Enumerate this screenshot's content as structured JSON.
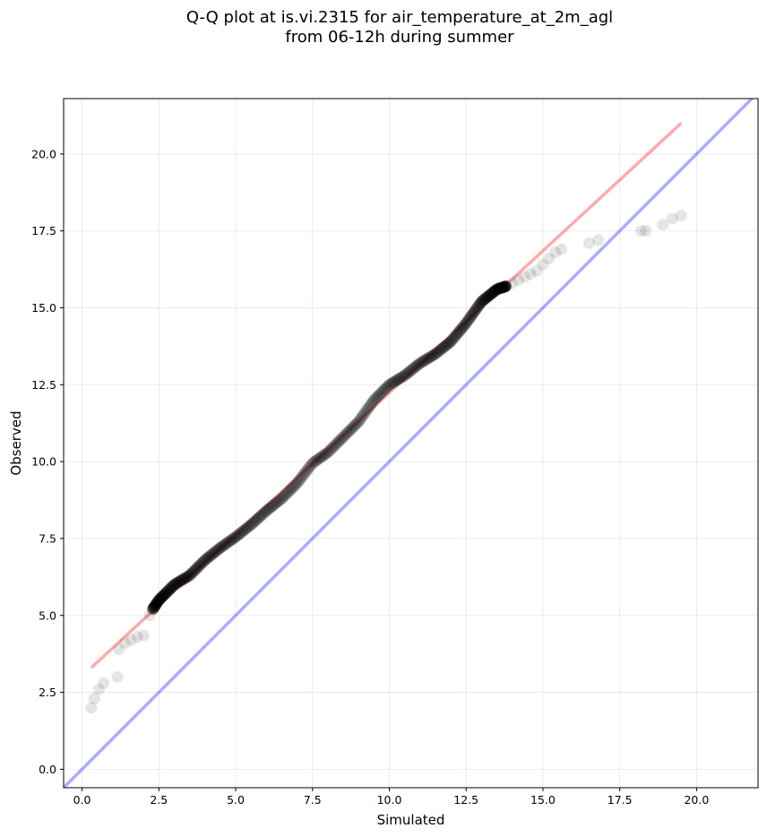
{
  "chart_data": {
    "type": "scatter",
    "title": "Q-Q plot at is.vi.2315 for air_temperature_at_2m_agl",
    "subtitle": "from 06-12h during summer",
    "xlabel": "Simulated",
    "ylabel": "Observed",
    "xlim": [
      -0.6,
      22
    ],
    "ylim": [
      -0.6,
      21.8
    ],
    "x_ticks": [
      0.0,
      2.5,
      5.0,
      7.5,
      10.0,
      12.5,
      15.0,
      17.5,
      20.0
    ],
    "y_ticks": [
      0.0,
      2.5,
      5.0,
      7.5,
      10.0,
      12.5,
      15.0,
      17.5,
      20.0
    ],
    "x_tick_labels": [
      "0.0",
      "2.5",
      "5.0",
      "7.5",
      "10.0",
      "12.5",
      "15.0",
      "17.5",
      "20.0"
    ],
    "y_tick_labels": [
      "0.0",
      "2.5",
      "5.0",
      "7.5",
      "10.0",
      "12.5",
      "15.0",
      "17.5",
      "20.0"
    ],
    "grid": true,
    "point_color": "#000000",
    "identity_line": {
      "color": "#0000ff",
      "x": [
        -0.6,
        22
      ],
      "y": [
        -0.6,
        22
      ]
    },
    "fit_line": {
      "color": "#ff0000",
      "x": [
        0.3,
        19.5
      ],
      "y": [
        3.3,
        21.0
      ]
    },
    "tail_points": [
      [
        0.3,
        2.0
      ],
      [
        0.4,
        2.3
      ],
      [
        0.55,
        2.6
      ],
      [
        0.7,
        2.8
      ],
      [
        1.15,
        3.0
      ],
      [
        1.2,
        3.9
      ],
      [
        1.4,
        4.1
      ],
      [
        1.6,
        4.2
      ],
      [
        1.8,
        4.3
      ],
      [
        2.0,
        4.35
      ],
      [
        2.2,
        5.0
      ],
      [
        2.3,
        5.2
      ],
      [
        13.8,
        15.7
      ],
      [
        14.0,
        15.8
      ],
      [
        14.2,
        15.9
      ],
      [
        14.4,
        16.0
      ],
      [
        14.6,
        16.1
      ],
      [
        14.8,
        16.2
      ],
      [
        15.0,
        16.4
      ],
      [
        15.2,
        16.6
      ],
      [
        15.4,
        16.8
      ],
      [
        15.6,
        16.9
      ],
      [
        16.5,
        17.1
      ],
      [
        16.8,
        17.2
      ],
      [
        18.2,
        17.5
      ],
      [
        18.35,
        17.5
      ],
      [
        18.9,
        17.7
      ],
      [
        19.2,
        17.9
      ],
      [
        19.5,
        18.0
      ]
    ],
    "body_curve": [
      [
        2.3,
        5.2
      ],
      [
        2.5,
        5.5
      ],
      [
        3.0,
        6.0
      ],
      [
        3.5,
        6.3
      ],
      [
        4.0,
        6.8
      ],
      [
        4.5,
        7.2
      ],
      [
        5.0,
        7.55
      ],
      [
        5.5,
        7.95
      ],
      [
        6.0,
        8.4
      ],
      [
        6.5,
        8.8
      ],
      [
        7.0,
        9.3
      ],
      [
        7.5,
        9.95
      ],
      [
        8.0,
        10.3
      ],
      [
        8.5,
        10.8
      ],
      [
        9.0,
        11.3
      ],
      [
        9.5,
        12.0
      ],
      [
        10.0,
        12.5
      ],
      [
        10.5,
        12.8
      ],
      [
        11.0,
        13.2
      ],
      [
        11.5,
        13.5
      ],
      [
        12.0,
        13.9
      ],
      [
        12.5,
        14.5
      ],
      [
        13.0,
        15.2
      ],
      [
        13.5,
        15.6
      ],
      [
        13.8,
        15.7
      ]
    ],
    "body_point_count": 700
  }
}
